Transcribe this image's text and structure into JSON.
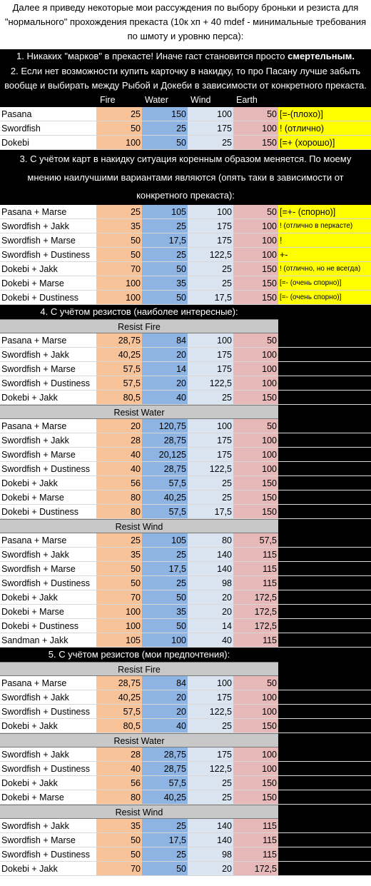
{
  "intro": "Далее я приведу некоторые мои рассуждения по выбору броньки и резиста для \"нормального\" прохождения прекаста (10к хп + 40 mdef - минимальные требования по шмоту и уровню перса):",
  "s1": {
    "text": "1. Никаких \"марков\" в прекасте! Иначе гаст становится просто ",
    "bold": "смертельным."
  },
  "s2": "2. Если нет возможности купить карточку в накидку, то про Пасану лучше забыть вообще и выбирать между Рыбой и Докеби в зависимости от конкретного прекаста.",
  "headers": {
    "fire": "Fire",
    "water": "Water",
    "wind": "Wind",
    "earth": "Earth"
  },
  "t2": [
    {
      "name": "Pasana",
      "fire": "25",
      "water": "150",
      "wind": "100",
      "earth": "50",
      "note": "[=-(плохо)]"
    },
    {
      "name": "Swordfish",
      "fire": "50",
      "water": "25",
      "wind": "175",
      "earth": "100",
      "note": "! (отлично)"
    },
    {
      "name": "Dokebi",
      "fire": "100",
      "water": "50",
      "wind": "25",
      "earth": "150",
      "note": "[=+ (хорошо)]"
    }
  ],
  "s3": "3. С учётом карт в накидку ситуация коренным образом меняется. По моему мнению наилучшими вариантами являются (опять таки в зависимости от конкретного прекаста):",
  "t3": [
    {
      "name": "Pasana + Marse",
      "fire": "25",
      "water": "105",
      "wind": "100",
      "earth": "50",
      "note": "[=+- (спорно)]"
    },
    {
      "name": "Swordfish + Jakk",
      "fire": "35",
      "water": "25",
      "wind": "175",
      "earth": "100",
      "note": "! (отлично в перкасте)"
    },
    {
      "name": "Swordfish + Marse",
      "fire": "50",
      "water": "17,5",
      "wind": "175",
      "earth": "100",
      "note": "!"
    },
    {
      "name": "Swordfish + Dustiness",
      "fire": "50",
      "water": "25",
      "wind": "122,5",
      "earth": "100",
      "note": "+-"
    },
    {
      "name": "Dokebi + Jakk",
      "fire": "70",
      "water": "50",
      "wind": "25",
      "earth": "150",
      "note": "! (отлично, но не всегда)"
    },
    {
      "name": "Dokebi + Marse",
      "fire": "100",
      "water": "35",
      "wind": "25",
      "earth": "150",
      "note": "[=- (очень спорно)]"
    },
    {
      "name": "Dokebi + Dustiness",
      "fire": "100",
      "water": "50",
      "wind": "17,5",
      "earth": "150",
      "note": "[=- (очень спорно)]"
    }
  ],
  "s4": "4. С учётом резистов (наиболее интересные):",
  "s4_fire_label": "Resist Fire",
  "s4_fire": [
    {
      "name": "Pasana + Marse",
      "fire": "28,75",
      "water": "84",
      "wind": "100",
      "earth": "50"
    },
    {
      "name": "Swordfish + Jakk",
      "fire": "40,25",
      "water": "20",
      "wind": "175",
      "earth": "100"
    },
    {
      "name": "Swordfish + Marse",
      "fire": "57,5",
      "water": "14",
      "wind": "175",
      "earth": "100"
    },
    {
      "name": "Swordfish + Dustiness",
      "fire": "57,5",
      "water": "20",
      "wind": "122,5",
      "earth": "100"
    },
    {
      "name": "Dokebi + Jakk",
      "fire": "80,5",
      "water": "40",
      "wind": "25",
      "earth": "150"
    }
  ],
  "s4_water_label": "Resist Water",
  "s4_water": [
    {
      "name": "Pasana + Marse",
      "fire": "20",
      "water": "120,75",
      "wind": "100",
      "earth": "50"
    },
    {
      "name": "Swordfish + Jakk",
      "fire": "28",
      "water": "28,75",
      "wind": "175",
      "earth": "100"
    },
    {
      "name": "Swordfish + Marse",
      "fire": "40",
      "water": "20,125",
      "wind": "175",
      "earth": "100"
    },
    {
      "name": "Swordfish + Dustiness",
      "fire": "40",
      "water": "28,75",
      "wind": "122,5",
      "earth": "100"
    },
    {
      "name": "Dokebi + Jakk",
      "fire": "56",
      "water": "57,5",
      "wind": "25",
      "earth": "150"
    },
    {
      "name": "Dokebi + Marse",
      "fire": "80",
      "water": "40,25",
      "wind": "25",
      "earth": "150"
    },
    {
      "name": "Dokebi + Dustiness",
      "fire": "80",
      "water": "57,5",
      "wind": "17,5",
      "earth": "150"
    }
  ],
  "s4_wind_label": "Resist Wind",
  "s4_wind": [
    {
      "name": "Pasana + Marse",
      "fire": "25",
      "water": "105",
      "wind": "80",
      "earth": "57,5"
    },
    {
      "name": "Swordfish + Jakk",
      "fire": "35",
      "water": "25",
      "wind": "140",
      "earth": "115"
    },
    {
      "name": "Swordfish + Marse",
      "fire": "50",
      "water": "17,5",
      "wind": "140",
      "earth": "115"
    },
    {
      "name": "Swordfish + Dustiness",
      "fire": "50",
      "water": "25",
      "wind": "98",
      "earth": "115"
    },
    {
      "name": "Dokebi + Jakk",
      "fire": "70",
      "water": "50",
      "wind": "20",
      "earth": "172,5"
    },
    {
      "name": "Dokebi + Marse",
      "fire": "100",
      "water": "35",
      "wind": "20",
      "earth": "172,5"
    },
    {
      "name": "Dokebi + Dustiness",
      "fire": "100",
      "water": "50",
      "wind": "14",
      "earth": "172,5"
    },
    {
      "name": "Sandman + Jakk",
      "fire": "105",
      "water": "100",
      "wind": "40",
      "earth": "115"
    }
  ],
  "s5": "5. С учётом резистов (мои предпочтения):",
  "s5_fire_label": "Resist Fire",
  "s5_fire": [
    {
      "name": "Pasana + Marse",
      "fire": "28,75",
      "water": "84",
      "wind": "100",
      "earth": "50"
    },
    {
      "name": "Swordfish + Jakk",
      "fire": "40,25",
      "water": "20",
      "wind": "175",
      "earth": "100"
    },
    {
      "name": "Swordfish + Dustiness",
      "fire": "57,5",
      "water": "20",
      "wind": "122,5",
      "earth": "100"
    },
    {
      "name": "Dokebi + Jakk",
      "fire": "80,5",
      "water": "40",
      "wind": "25",
      "earth": "150"
    }
  ],
  "s5_water_label": "Resist Water",
  "s5_water": [
    {
      "name": "Swordfish + Jakk",
      "fire": "28",
      "water": "28,75",
      "wind": "175",
      "earth": "100"
    },
    {
      "name": "Swordfish + Dustiness",
      "fire": "40",
      "water": "28,75",
      "wind": "122,5",
      "earth": "100"
    },
    {
      "name": "Dokebi + Jakk",
      "fire": "56",
      "water": "57,5",
      "wind": "25",
      "earth": "150"
    },
    {
      "name": "Dokebi + Marse",
      "fire": "80",
      "water": "40,25",
      "wind": "25",
      "earth": "150"
    }
  ],
  "s5_wind_label": "Resist Wind",
  "s5_wind": [
    {
      "name": "Swordfish + Jakk",
      "fire": "35",
      "water": "25",
      "wind": "140",
      "earth": "115"
    },
    {
      "name": "Swordfish + Marse",
      "fire": "50",
      "water": "17,5",
      "wind": "140",
      "earth": "115"
    },
    {
      "name": "Swordfish + Dustiness",
      "fire": "50",
      "water": "25",
      "wind": "98",
      "earth": "115"
    },
    {
      "name": "Dokebi + Jakk",
      "fire": "70",
      "water": "50",
      "wind": "20",
      "earth": "172,5"
    }
  ],
  "colors": {
    "fire": "#f9c39a",
    "water": "#8eb4e3",
    "wind": "#dbe5f1",
    "earth": "#e6b9b8",
    "note": "#ffff00",
    "subhead": "#c8c8c8"
  }
}
